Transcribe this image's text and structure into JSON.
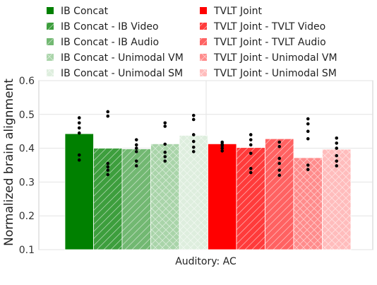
{
  "chart_data": {
    "type": "bar",
    "xlabel": "",
    "ylabel": "Normalized brain alignment",
    "ylim": [
      0.1,
      0.6
    ],
    "yticks": [
      "0.1",
      "0.2",
      "0.3",
      "0.4",
      "0.5",
      "0.6"
    ],
    "categories": [
      "Auditory: AC"
    ],
    "grid": true,
    "legend_position": "top",
    "series": [
      {
        "name": "IB Concat",
        "value": 0.443,
        "color": "#008000",
        "pattern": "solid",
        "points": [
          0.49,
          0.475,
          0.46,
          0.445,
          0.38,
          0.365
        ]
      },
      {
        "name": "IB Concat - IB Video",
        "value": 0.4,
        "color": "#3d9e3d",
        "pattern": "diagonal",
        "points": [
          0.508,
          0.495,
          0.355,
          0.345,
          0.335,
          0.322
        ]
      },
      {
        "name": "IB Concat - IB Audio",
        "value": 0.398,
        "color": "#72b872",
        "pattern": "diagonal",
        "points": [
          0.425,
          0.41,
          0.4,
          0.39,
          0.362,
          0.348
        ]
      },
      {
        "name": "IB Concat - Unimodal VM",
        "value": 0.413,
        "color": "#a9d4a9",
        "pattern": "cross",
        "points": [
          0.475,
          0.465,
          0.412,
          0.388,
          0.375,
          0.362
        ]
      },
      {
        "name": "IB Concat - Unimodal SM",
        "value": 0.438,
        "color": "#deeede",
        "pattern": "cross",
        "points": [
          0.497,
          0.485,
          0.44,
          0.42,
          0.403,
          0.39
        ]
      },
      {
        "name": "TVLT Joint",
        "value": 0.413,
        "color": "#ff0000",
        "pattern": "solid",
        "points": [
          0.418,
          0.412,
          0.407,
          0.4,
          0.392
        ]
      },
      {
        "name": "TVLT Joint - TVLT Video",
        "value": 0.402,
        "color": "#ff3b3b",
        "pattern": "diagonal",
        "points": [
          0.44,
          0.425,
          0.41,
          0.385,
          0.34,
          0.328
        ]
      },
      {
        "name": "TVLT Joint - TVLT Audio",
        "value": 0.428,
        "color": "#ff6262",
        "pattern": "diagonal",
        "points": [
          0.418,
          0.405,
          0.37,
          0.355,
          0.335,
          0.32
        ]
      },
      {
        "name": "TVLT Joint - Unimodal VM",
        "value": 0.372,
        "color": "#ff8c8c",
        "pattern": "cross",
        "points": [
          0.487,
          0.472,
          0.45,
          0.428,
          0.35,
          0.337
        ]
      },
      {
        "name": "TVLT Joint - Unimodal SM",
        "value": 0.397,
        "color": "#ffbcbc",
        "pattern": "cross",
        "points": [
          0.43,
          0.415,
          0.4,
          0.378,
          0.362,
          0.348
        ]
      }
    ]
  }
}
